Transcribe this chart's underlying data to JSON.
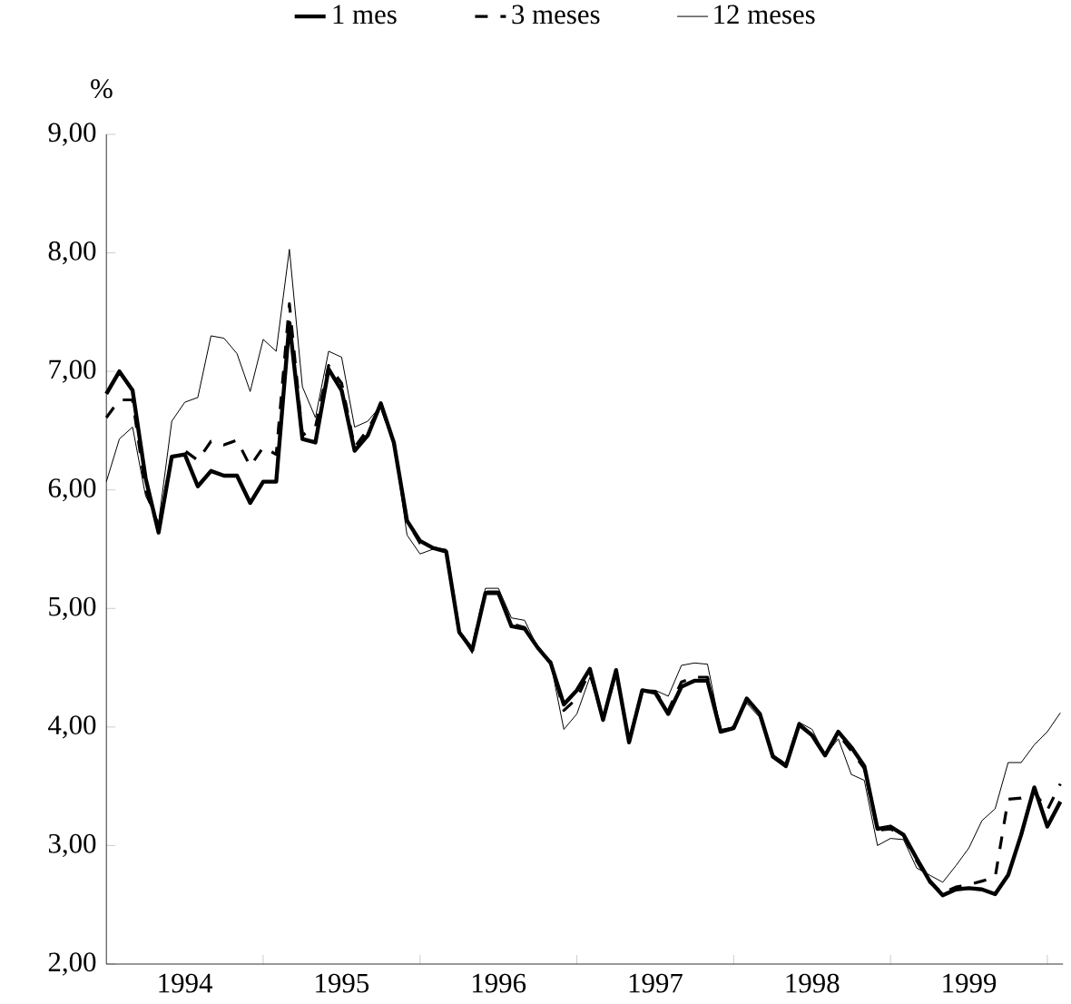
{
  "chart_data": {
    "type": "line",
    "ylabel": "%",
    "x": [
      1994.0,
      1994.083,
      1994.167,
      1994.25,
      1994.333,
      1994.417,
      1994.5,
      1994.583,
      1994.667,
      1994.75,
      1994.833,
      1994.917,
      1995.0,
      1995.083,
      1995.167,
      1995.25,
      1995.333,
      1995.417,
      1995.5,
      1995.583,
      1995.667,
      1995.75,
      1995.833,
      1995.917,
      1996.0,
      1996.083,
      1996.167,
      1996.25,
      1996.333,
      1996.417,
      1996.5,
      1996.583,
      1996.667,
      1996.75,
      1996.833,
      1996.917,
      1997.0,
      1997.083,
      1997.167,
      1997.25,
      1997.333,
      1997.417,
      1997.5,
      1997.583,
      1997.667,
      1997.75,
      1997.833,
      1997.917,
      1998.0,
      1998.083,
      1998.167,
      1998.25,
      1998.333,
      1998.417,
      1998.5,
      1998.583,
      1998.667,
      1998.75,
      1998.833,
      1998.917,
      1999.0,
      1999.083,
      1999.167,
      1999.25,
      1999.333,
      1999.417,
      1999.5,
      1999.583,
      1999.667,
      1999.75,
      1999.833,
      1999.917,
      2000.0,
      2000.083
    ],
    "series": [
      {
        "name": "1 mes",
        "color": "#000000",
        "line_style": "solid",
        "values": [
          6.81,
          7.0,
          6.84,
          6.1,
          5.64,
          6.28,
          6.3,
          6.03,
          6.16,
          6.12,
          6.12,
          5.89,
          6.07,
          6.07,
          7.41,
          6.43,
          6.4,
          7.02,
          6.84,
          6.33,
          6.46,
          6.73,
          6.4,
          5.74,
          5.57,
          5.51,
          5.48,
          4.8,
          4.65,
          5.13,
          5.13,
          4.85,
          4.83,
          4.67,
          4.54,
          4.19,
          4.31,
          4.49,
          4.06,
          4.48,
          3.87,
          4.31,
          4.29,
          4.11,
          4.34,
          4.39,
          4.39,
          3.96,
          3.99,
          4.24,
          4.11,
          3.75,
          3.67,
          4.02,
          3.93,
          3.76,
          3.96,
          3.83,
          3.67,
          3.14,
          3.16,
          3.09,
          2.89,
          2.7,
          2.58,
          2.63,
          2.64,
          2.63,
          2.59,
          2.75,
          3.09,
          3.49,
          3.16,
          3.37
        ]
      },
      {
        "name": "3 meses",
        "color": "#000000",
        "line_style": "dashed",
        "values": [
          6.61,
          6.76,
          6.76,
          6.0,
          5.68,
          6.28,
          6.33,
          6.25,
          6.41,
          6.38,
          6.42,
          6.2,
          6.36,
          6.3,
          7.57,
          6.46,
          6.53,
          7.05,
          6.9,
          6.36,
          6.51,
          6.71,
          6.4,
          5.74,
          5.55,
          5.51,
          5.49,
          4.8,
          4.66,
          5.14,
          5.14,
          4.87,
          4.84,
          4.67,
          4.55,
          4.14,
          4.24,
          4.47,
          4.06,
          4.46,
          3.88,
          4.31,
          4.3,
          4.14,
          4.38,
          4.42,
          4.42,
          3.97,
          4.0,
          4.23,
          4.1,
          3.76,
          3.68,
          4.03,
          3.92,
          3.76,
          3.94,
          3.8,
          3.65,
          3.13,
          3.14,
          3.08,
          2.87,
          2.69,
          2.6,
          2.65,
          2.67,
          2.7,
          2.73,
          3.39,
          3.4,
          3.45,
          3.3,
          3.52
        ]
      },
      {
        "name": "12 meses",
        "color": "#000000",
        "line_style": "solid",
        "values": [
          6.07,
          6.43,
          6.53,
          5.95,
          5.73,
          6.58,
          6.74,
          6.78,
          7.3,
          7.28,
          7.15,
          6.83,
          7.27,
          7.17,
          8.03,
          6.87,
          6.61,
          7.17,
          7.12,
          6.53,
          6.58,
          6.71,
          6.4,
          5.62,
          5.46,
          5.5,
          5.5,
          4.8,
          4.62,
          5.17,
          5.17,
          4.92,
          4.9,
          4.67,
          4.54,
          3.98,
          4.11,
          4.42,
          4.06,
          4.44,
          3.9,
          4.31,
          4.31,
          4.26,
          4.52,
          4.54,
          4.53,
          3.98,
          4.0,
          4.2,
          4.08,
          3.77,
          3.69,
          4.04,
          3.98,
          3.76,
          3.9,
          3.6,
          3.55,
          3.0,
          3.06,
          3.05,
          2.81,
          2.75,
          2.69,
          2.83,
          2.98,
          3.21,
          3.31,
          3.7,
          3.7,
          3.85,
          3.96,
          4.12
        ]
      }
    ],
    "xlim": [
      1994,
      2000.1
    ],
    "xticks": [
      {
        "value": 1995,
        "label": null
      },
      {
        "value": 1996,
        "label": null
      },
      {
        "value": 1997,
        "label": null
      },
      {
        "value": 1998,
        "label": null
      },
      {
        "value": 1999,
        "label": null
      },
      {
        "value": 2000,
        "label": null
      },
      {
        "value": 1994.5,
        "label": "1994"
      },
      {
        "value": 1995.5,
        "label": "1995"
      },
      {
        "value": 1996.5,
        "label": "1996"
      },
      {
        "value": 1997.5,
        "label": "1997"
      },
      {
        "value": 1998.5,
        "label": "1998"
      },
      {
        "value": 1999.5,
        "label": "1999"
      }
    ],
    "ylim": [
      2,
      9
    ],
    "yticks": [
      {
        "value": 2,
        "label": "2,00"
      },
      {
        "value": 3,
        "label": "3,00"
      },
      {
        "value": 4,
        "label": "4,00"
      },
      {
        "value": 5,
        "label": "5,00"
      },
      {
        "value": 6,
        "label": "6,00"
      },
      {
        "value": 7,
        "label": "7,00"
      },
      {
        "value": 8,
        "label": "8,00"
      },
      {
        "value": 9,
        "label": "9,00"
      }
    ],
    "legend": "top",
    "grid": false
  }
}
